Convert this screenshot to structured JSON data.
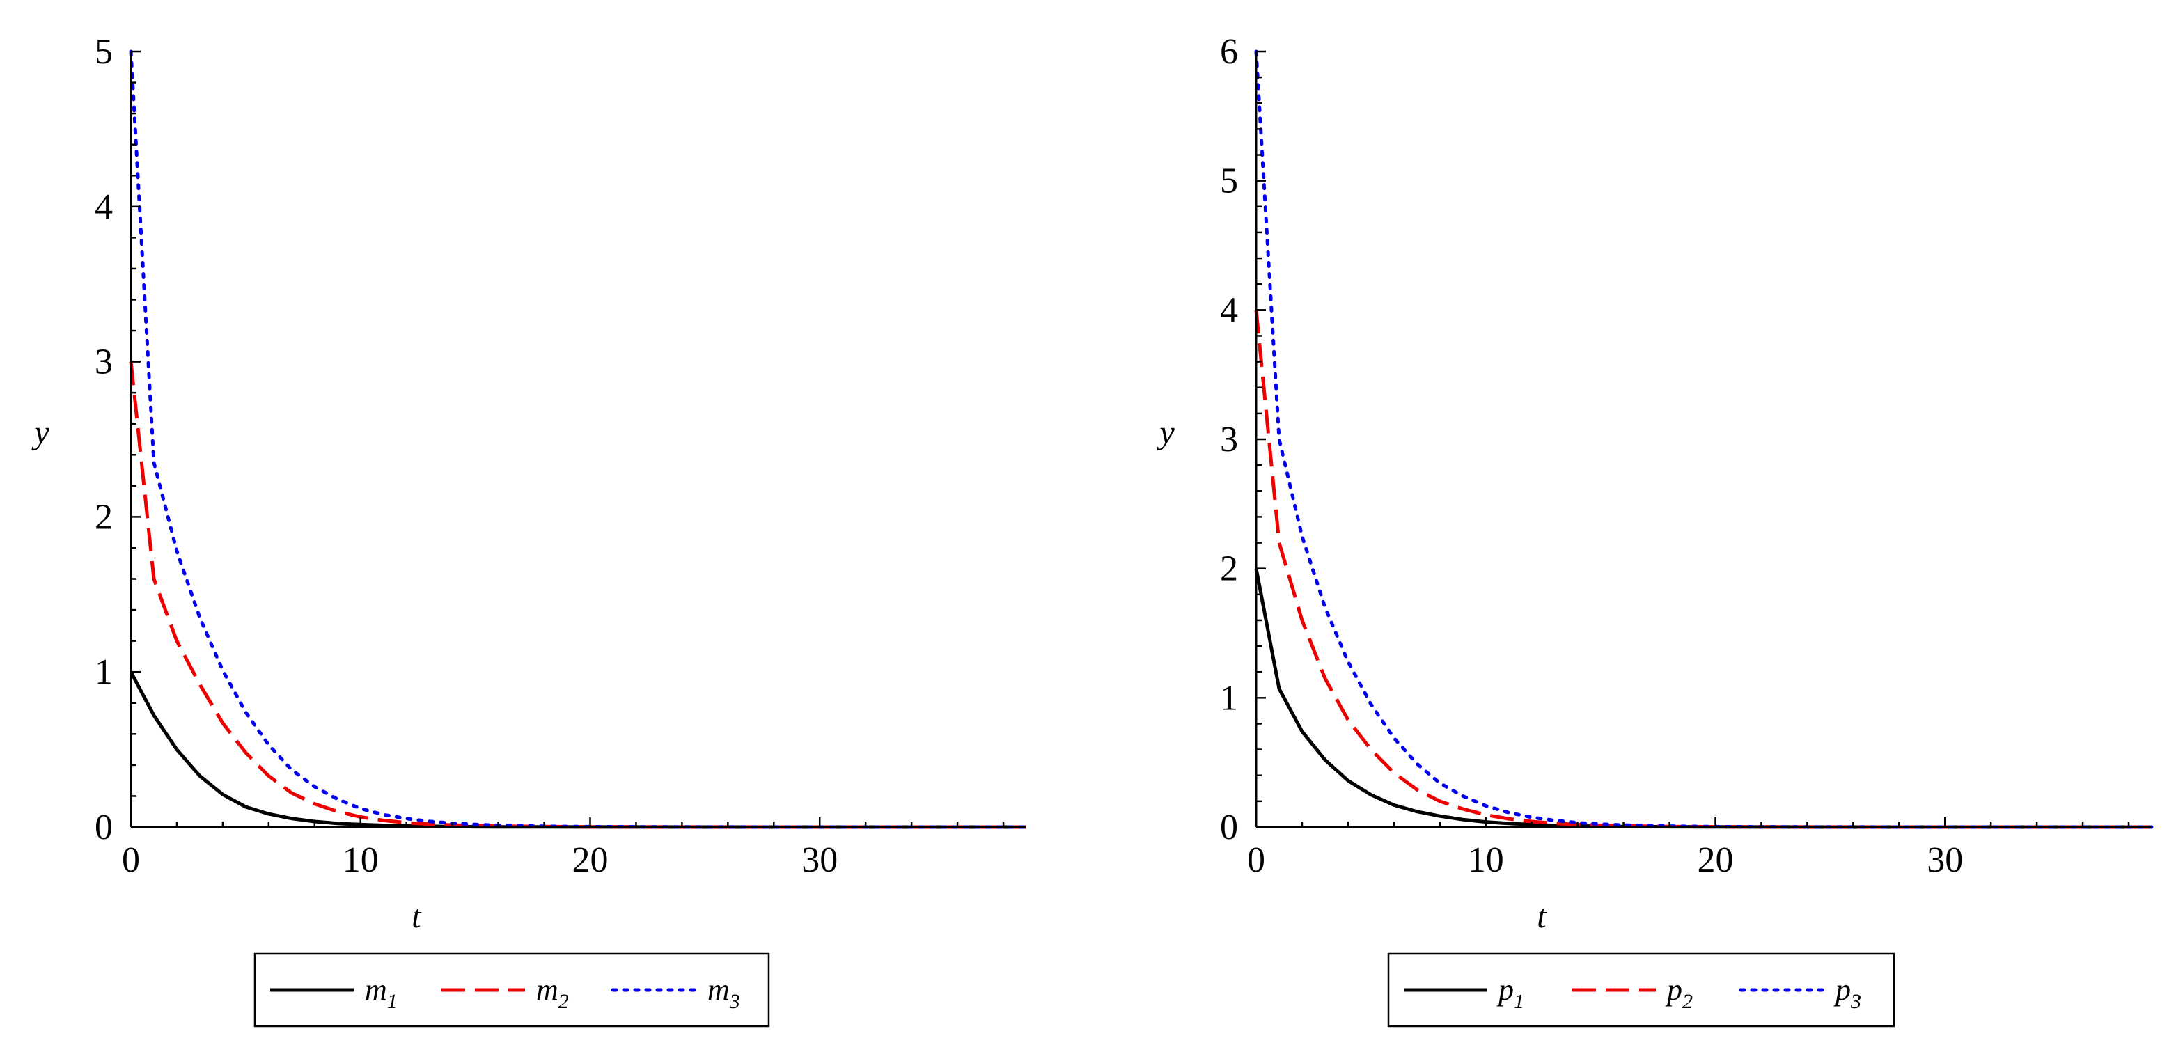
{
  "chart_data": [
    {
      "type": "line",
      "xlabel": "t",
      "ylabel": "y",
      "xlim": [
        0,
        39
      ],
      "ylim": [
        0,
        5
      ],
      "xticks": [
        0,
        10,
        20,
        30
      ],
      "yticks": [
        0,
        1,
        2,
        3,
        4,
        5
      ],
      "grid": false,
      "legend_position": "bottom",
      "x": [
        0,
        1,
        2,
        3,
        4,
        5,
        6,
        7,
        8,
        9,
        10,
        11,
        12,
        13,
        14,
        15,
        16,
        18,
        20,
        22,
        25,
        30,
        35,
        39
      ],
      "series": [
        {
          "name": "m1",
          "label_base": "m",
          "label_sub": "1",
          "color": "#000000",
          "dash": "solid",
          "values": [
            1.0,
            0.72,
            0.5,
            0.33,
            0.21,
            0.13,
            0.085,
            0.055,
            0.036,
            0.024,
            0.016,
            0.011,
            0.007,
            0.005,
            0.003,
            0.002,
            0.0015,
            0.001,
            0.0005,
            0.0003,
            0.0001,
            0.0,
            0.0,
            0.0
          ]
        },
        {
          "name": "m2",
          "label_base": "m",
          "label_sub": "2",
          "color": "#ee0000",
          "dash": "dashed",
          "values": [
            3.0,
            1.6,
            1.2,
            0.92,
            0.67,
            0.48,
            0.33,
            0.22,
            0.15,
            0.1,
            0.065,
            0.043,
            0.028,
            0.019,
            0.013,
            0.009,
            0.006,
            0.003,
            0.0015,
            0.0008,
            0.0003,
            0.0,
            0.0,
            0.0
          ]
        },
        {
          "name": "m3",
          "label_base": "m",
          "label_sub": "3",
          "color": "#0000ee",
          "dash": "dotted",
          "values": [
            5.0,
            2.35,
            1.78,
            1.35,
            1.01,
            0.74,
            0.53,
            0.37,
            0.26,
            0.18,
            0.12,
            0.08,
            0.055,
            0.037,
            0.025,
            0.017,
            0.011,
            0.005,
            0.0025,
            0.0012,
            0.0004,
            0.0,
            0.0,
            0.0
          ]
        }
      ]
    },
    {
      "type": "line",
      "xlabel": "t",
      "ylabel": "y",
      "xlim": [
        0,
        39
      ],
      "ylim": [
        0,
        6
      ],
      "xticks": [
        0,
        10,
        20,
        30
      ],
      "yticks": [
        0,
        1,
        2,
        3,
        4,
        5,
        6
      ],
      "grid": false,
      "legend_position": "bottom",
      "x": [
        0,
        1,
        2,
        3,
        4,
        5,
        6,
        7,
        8,
        9,
        10,
        11,
        12,
        13,
        14,
        15,
        16,
        18,
        20,
        22,
        25,
        30,
        35,
        39
      ],
      "series": [
        {
          "name": "p1",
          "label_base": "p",
          "label_sub": "1",
          "color": "#000000",
          "dash": "solid",
          "values": [
            2.0,
            1.07,
            0.74,
            0.52,
            0.36,
            0.25,
            0.17,
            0.12,
            0.085,
            0.058,
            0.04,
            0.028,
            0.019,
            0.013,
            0.009,
            0.006,
            0.004,
            0.002,
            0.001,
            0.0005,
            0.0002,
            0.0,
            0.0,
            0.0
          ]
        },
        {
          "name": "p2",
          "label_base": "p",
          "label_sub": "2",
          "color": "#ee0000",
          "dash": "dashed",
          "values": [
            4.0,
            2.2,
            1.6,
            1.15,
            0.83,
            0.6,
            0.42,
            0.29,
            0.2,
            0.14,
            0.095,
            0.064,
            0.043,
            0.029,
            0.019,
            0.013,
            0.009,
            0.004,
            0.002,
            0.001,
            0.0003,
            0.0,
            0.0,
            0.0
          ]
        },
        {
          "name": "p3",
          "label_base": "p",
          "label_sub": "3",
          "color": "#0000ee",
          "dash": "dotted",
          "values": [
            6.0,
            3.0,
            2.25,
            1.7,
            1.28,
            0.95,
            0.69,
            0.49,
            0.34,
            0.24,
            0.165,
            0.112,
            0.076,
            0.051,
            0.034,
            0.023,
            0.015,
            0.007,
            0.003,
            0.0015,
            0.0005,
            0.0,
            0.0,
            0.0
          ]
        }
      ]
    }
  ]
}
